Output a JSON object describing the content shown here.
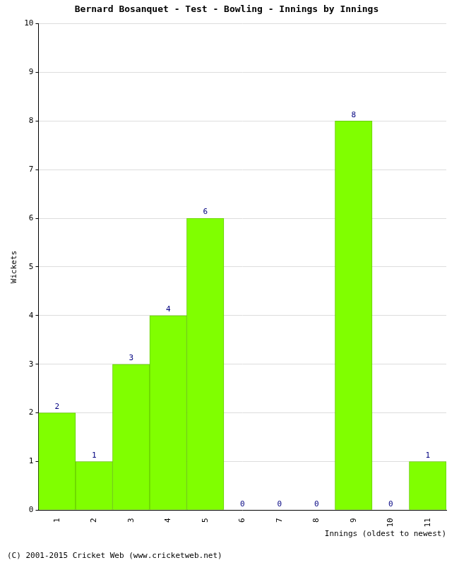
{
  "chart_data": {
    "type": "bar",
    "title": "Bernard Bosanquet - Test - Bowling - Innings by Innings",
    "x_label": "Innings (oldest to newest)",
    "y_label": "Wickets",
    "footer": "(C) 2001-2015 Cricket Web (www.cricketweb.net)",
    "categories": [
      "1",
      "2",
      "3",
      "4",
      "5",
      "6",
      "7",
      "8",
      "9",
      "10",
      "11"
    ],
    "values": [
      2,
      1,
      3,
      4,
      6,
      0,
      0,
      0,
      8,
      0,
      1
    ],
    "color": "#80ff00",
    "ylim": [
      0,
      10
    ],
    "yticks": [
      0,
      1,
      2,
      3,
      4,
      5,
      6,
      7,
      8,
      9,
      10
    ],
    "grid": true,
    "data_labels": true
  }
}
